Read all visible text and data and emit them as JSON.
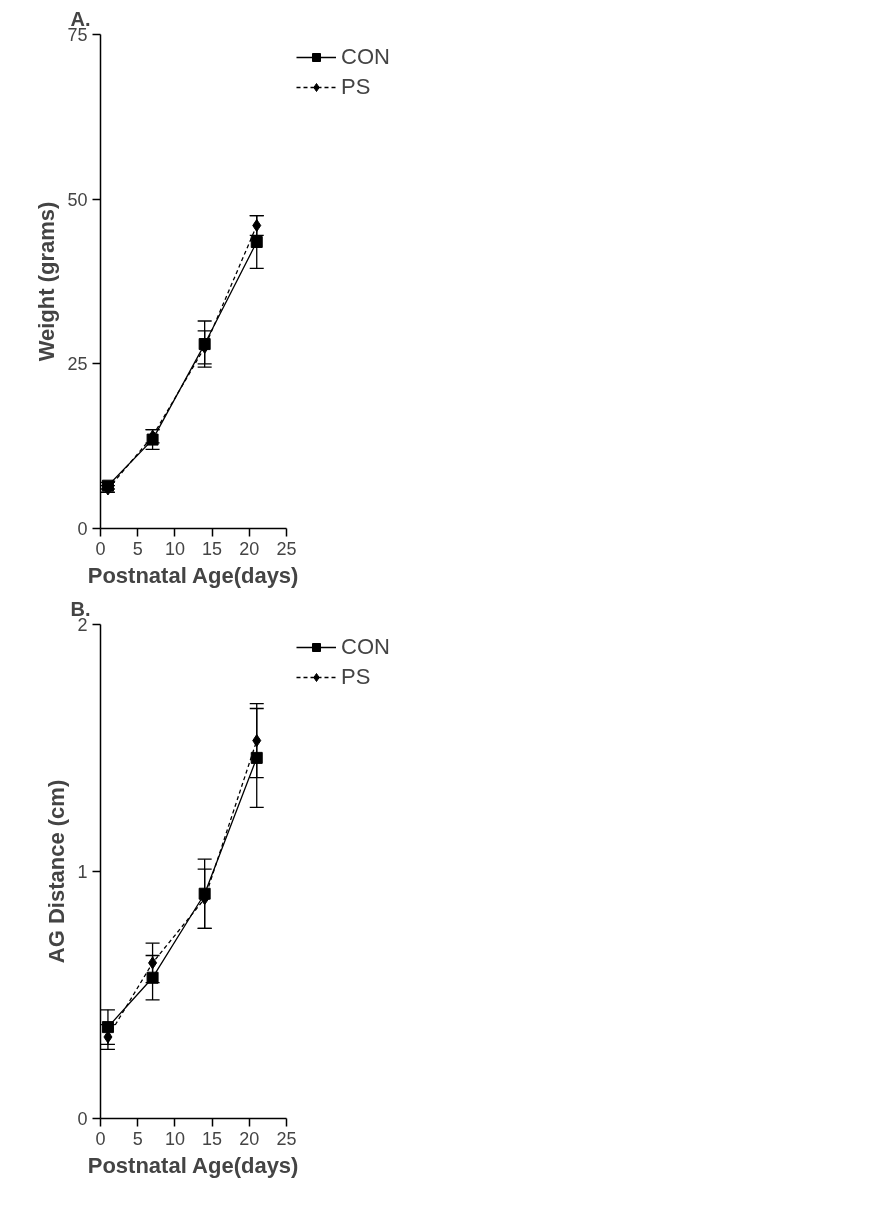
{
  "chart_data": [
    {
      "type": "line",
      "title": "A.",
      "xlabel": "Postnatal Age(days)",
      "ylabel": "Weight (grams)",
      "x": [
        1,
        7,
        14,
        21
      ],
      "xlim": [
        0,
        25
      ],
      "xticks": [
        0,
        5,
        10,
        15,
        20,
        25
      ],
      "ylim": [
        0,
        75
      ],
      "yticks": [
        0,
        25,
        50,
        75
      ],
      "grid": false,
      "legend": "top right",
      "series": [
        {
          "name": "CON",
          "color": "#000000",
          "marker": "square",
          "line_style": "solid",
          "values": [
            6.5,
            13.5,
            28,
            43.5
          ],
          "errors": [
            0.5,
            1.5,
            3.5,
            4
          ]
        },
        {
          "name": "PS",
          "color": "#000000",
          "marker": "diamond",
          "line_style": "dashed",
          "values": [
            6,
            14,
            27.5,
            46
          ],
          "errors": [
            0.5,
            1,
            2.5,
            1.5
          ]
        }
      ]
    },
    {
      "type": "line",
      "title": "B.",
      "xlabel": "Postnatal Age(days)",
      "ylabel": "AG Distance (cm)",
      "x": [
        1,
        7,
        14,
        21
      ],
      "xlim": [
        0,
        25
      ],
      "xticks": [
        0,
        5,
        10,
        15,
        20,
        25
      ],
      "ylim": [
        0,
        2
      ],
      "yticks": [
        0,
        1,
        2
      ],
      "grid": false,
      "legend": "top right",
      "series": [
        {
          "name": "CON",
          "color": "#000000",
          "marker": "square",
          "line_style": "solid",
          "values": [
            0.37,
            0.57,
            0.91,
            1.46
          ],
          "errors": [
            0.07,
            0.09,
            0.14,
            0.2
          ]
        },
        {
          "name": "PS",
          "color": "#000000",
          "marker": "diamond",
          "line_style": "dashed",
          "values": [
            0.33,
            0.63,
            0.89,
            1.53
          ],
          "errors": [
            0.05,
            0.08,
            0.12,
            0.15
          ]
        }
      ]
    }
  ]
}
